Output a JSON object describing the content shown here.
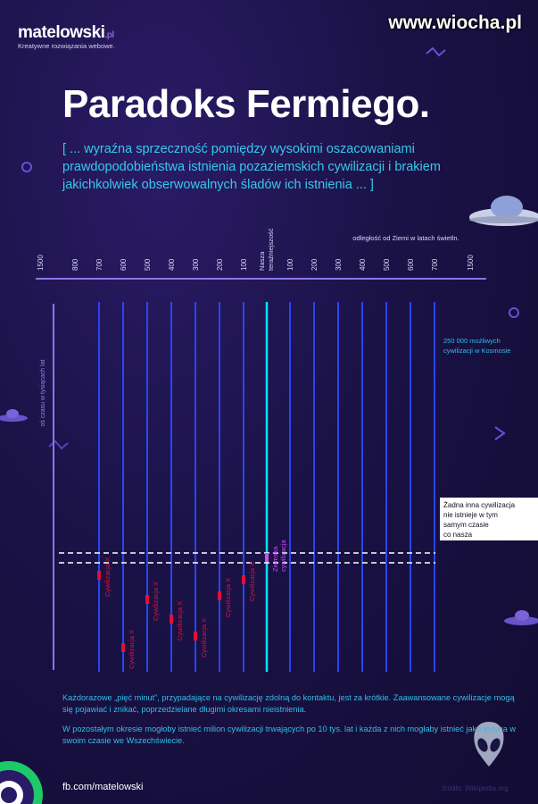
{
  "brand": {
    "name": "matelowski",
    "suffix": ".pl",
    "tagline": "Kreatywne rozwiązania webowe."
  },
  "watermark": "www.wiocha.pl",
  "title": "Paradoks Fermiego.",
  "subtitle": "[ ... wyraźna sprzeczność pomiędzy wysokimi oszacowaniami prawdopodobieństwa istnienia pozaziemskich cywilizacji i brakiem jakichkolwiek obserwowalnych śladów ich istnienia ... ]",
  "diagram": {
    "distance_axis_label": "odległość od Ziemi w latach świetln.",
    "time_axis_label": "oś czasu w tysiącach lat",
    "present_label": "Nasza teraźniejszość",
    "ticks": [
      "1500",
      "800",
      "700",
      "600",
      "500",
      "400",
      "300",
      "200",
      "100",
      "",
      "100",
      "200",
      "300",
      "400",
      "500",
      "600",
      "700",
      "1500"
    ],
    "count_note": "250 000 możliwych cywilizacji w Kosmosie",
    "no_other_note": "Żadna inna cywilizacja nie istnieje w tym samym czasie co nasza",
    "civ_label": "Cywilizacja X",
    "our_civ_label": "Ziemska cywilizacja",
    "colors": {
      "line": "#2a45f0",
      "present": "#00e5ff",
      "marker": "#e0103a",
      "our": "#d14bff",
      "axis": "#8e74e6"
    }
  },
  "bottom": {
    "p1": "Każdorazowe „pięć minut”, przypadające na cywilizację zdolną do kontaktu, jest za krótkie. Zaawansowane cywilizacje mogą się pojawiać i znikać, poprzedzielane długimi okresami nieistnienia.",
    "p2": "W pozostałym okresie mogłoby istnieć milion cywilizacji trwających po 10 tys. lat i każda z nich mogłaby istnieć jako jedyna w swoim czasie we Wszechświecie."
  },
  "footer": {
    "link": "fb.com/matelowski",
    "source": "źródło: Wikipedia.org"
  }
}
